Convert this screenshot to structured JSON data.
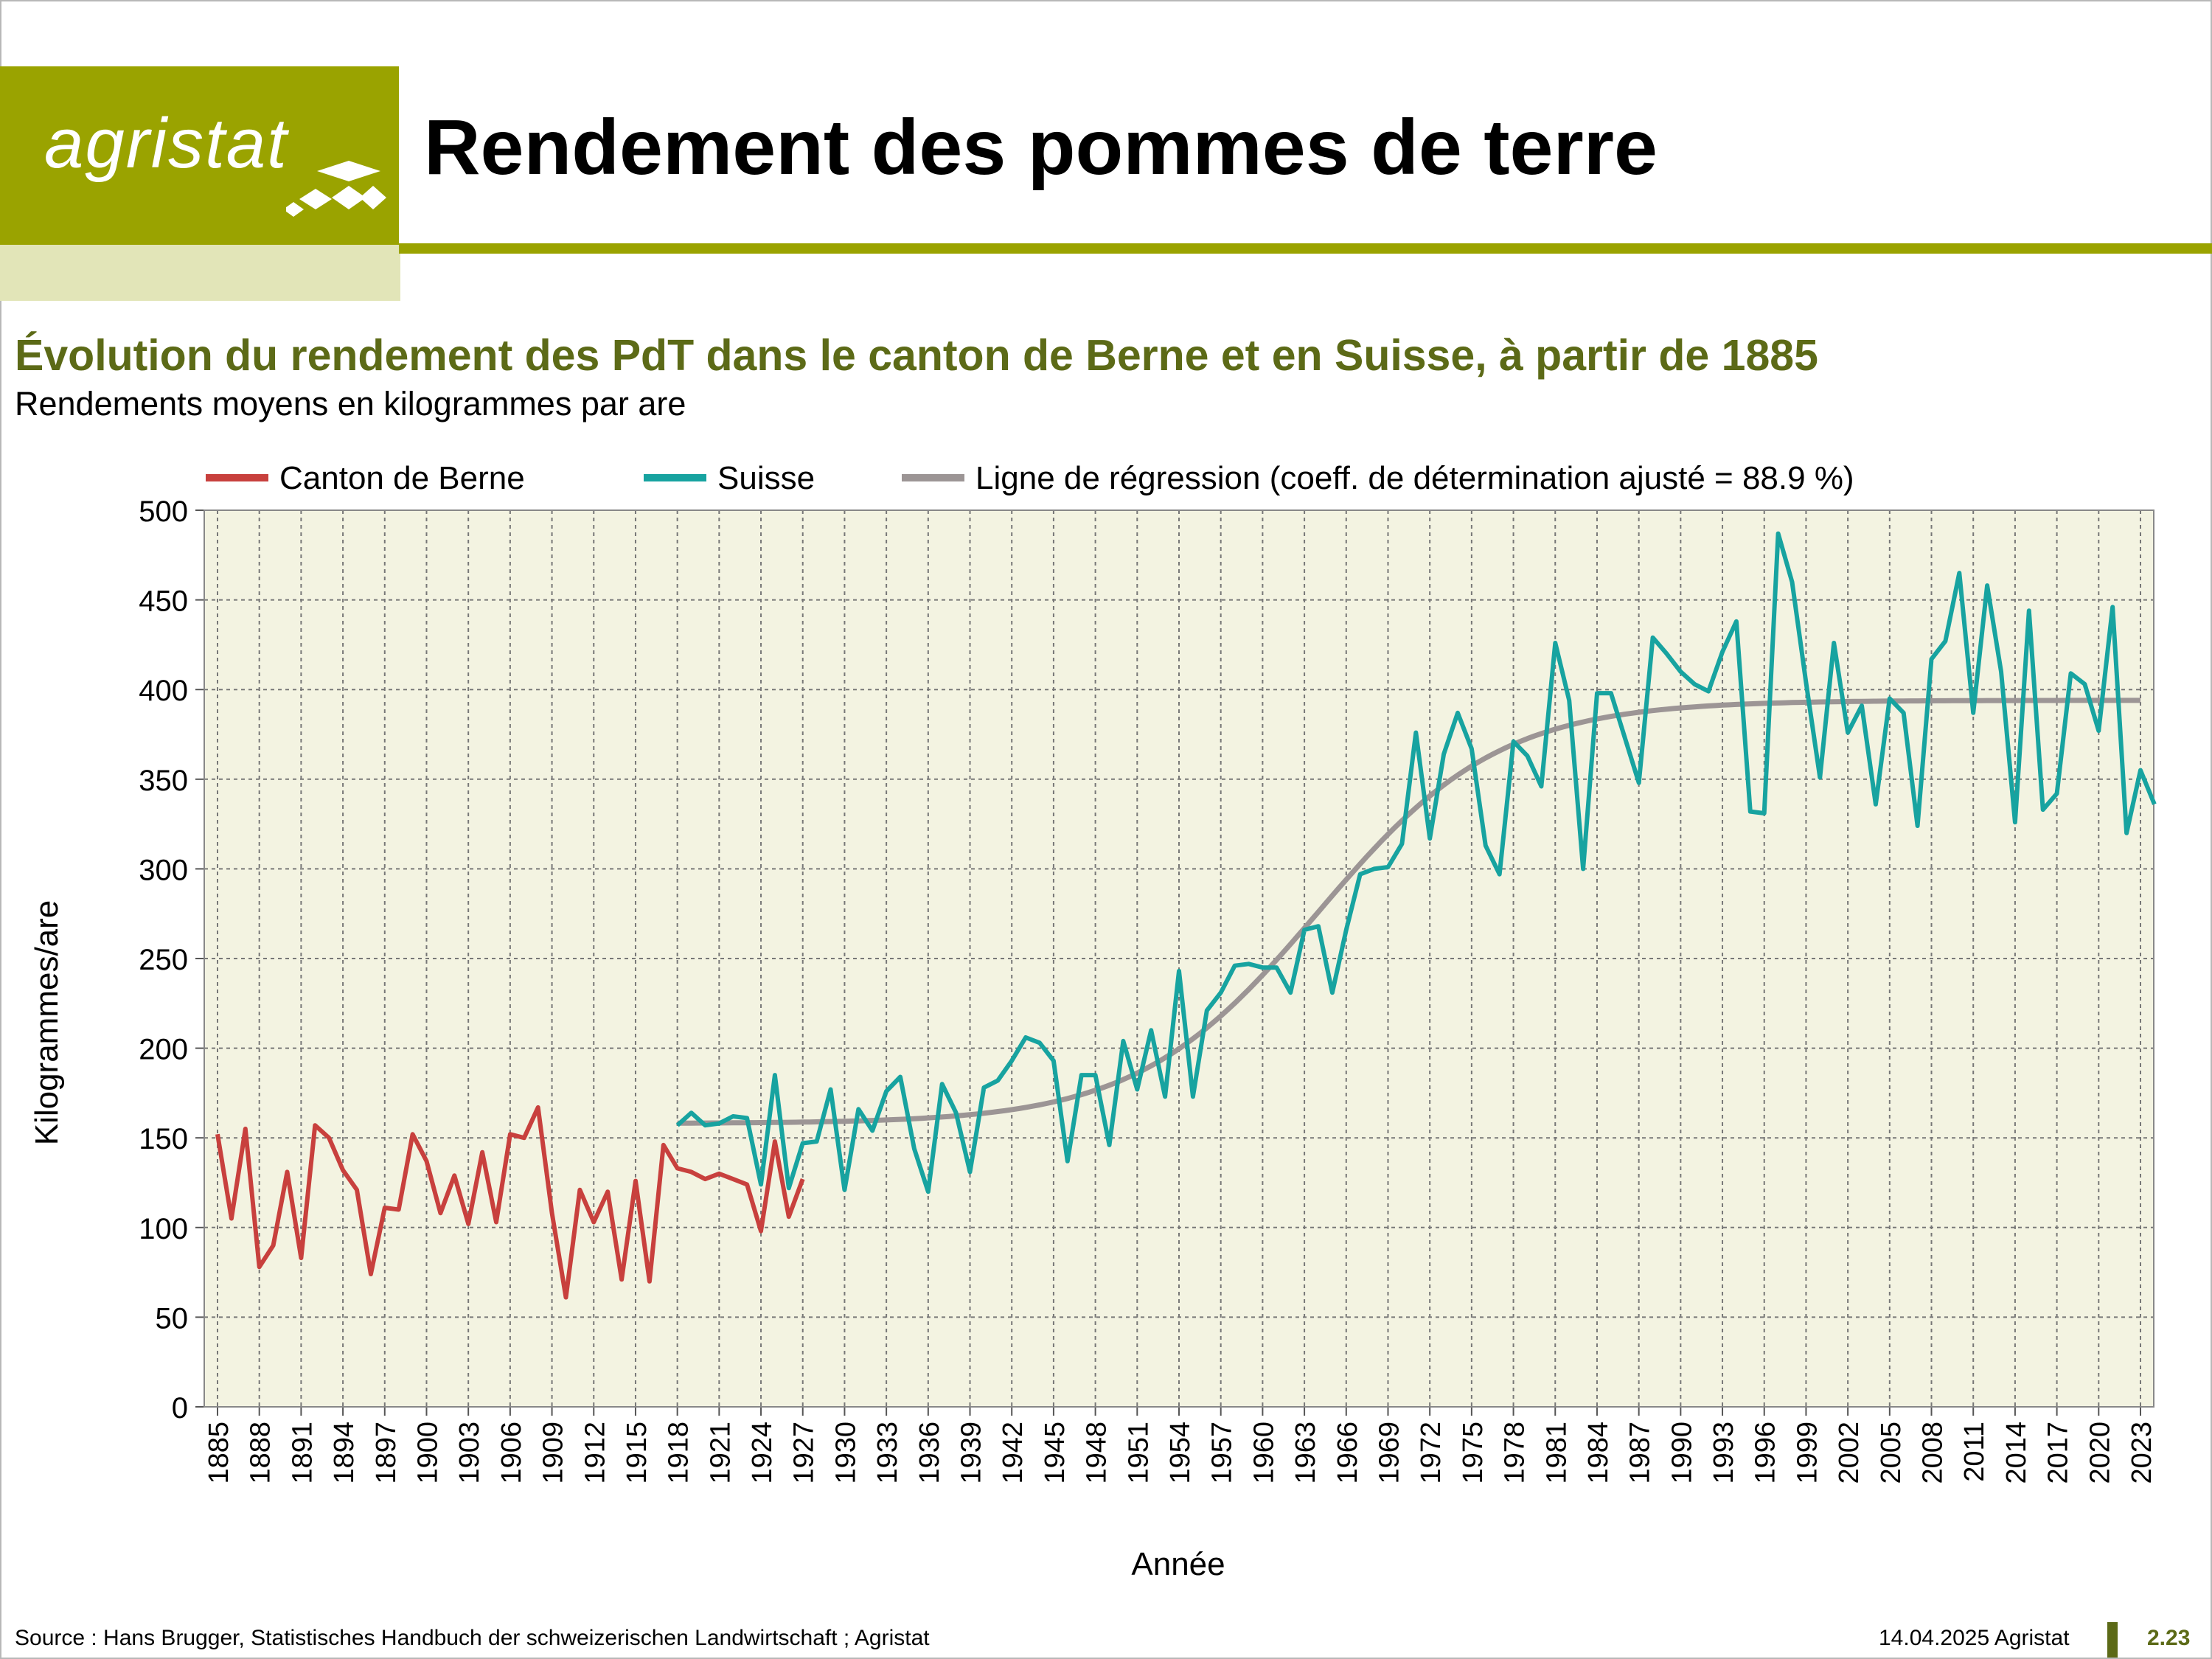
{
  "header": {
    "logo_text": "agristat",
    "title": "Rendement des pommes de terre"
  },
  "subtitle": "Évolution du rendement des PdT dans le canton de Berne et en Suisse, à partir de 1885",
  "subsubtitle": "Rendements moyens en kilogrammes par are",
  "footer": {
    "source": "Source : Hans Brugger, Statistisches Handbuch der schweizerischen Landwirtschaft ; Agristat",
    "date": "14.04.2025 Agristat",
    "page": "2.23"
  },
  "colors": {
    "brand": "#9aa300",
    "title_green": "#5c6a17",
    "berne": "#c8403d",
    "suisse": "#17a3a0",
    "regression": "#9c9595",
    "plot_bg": "#f3f3e1"
  },
  "chart_data": {
    "type": "line",
    "xlabel": "Année",
    "ylabel": "Kilogrammes/are",
    "ylim": [
      0,
      500
    ],
    "yticks": [
      0,
      50,
      100,
      150,
      200,
      250,
      300,
      350,
      400,
      450,
      500
    ],
    "xlim": [
      1885,
      2023
    ],
    "xticks": [
      1885,
      1888,
      1891,
      1894,
      1897,
      1900,
      1903,
      1906,
      1909,
      1912,
      1915,
      1918,
      1921,
      1924,
      1927,
      1930,
      1933,
      1936,
      1939,
      1942,
      1945,
      1948,
      1951,
      1954,
      1957,
      1960,
      1963,
      1966,
      1969,
      1972,
      1975,
      1978,
      1981,
      1984,
      1987,
      1990,
      1993,
      1996,
      1999,
      2002,
      2005,
      2008,
      2011,
      2014,
      2017,
      2020,
      2023
    ],
    "grid": true,
    "legend_position": "top",
    "series": [
      {
        "name": "Canton de Berne",
        "color": "#c8403d",
        "start_year": 1885,
        "values": [
          152,
          105,
          155,
          78,
          90,
          131,
          83,
          157,
          150,
          132,
          121,
          74,
          111,
          110,
          152,
          137,
          108,
          129,
          102,
          142,
          103,
          152,
          150,
          167,
          108,
          61,
          121,
          103,
          120,
          71,
          126,
          70,
          146,
          133,
          131,
          127,
          130,
          127,
          124,
          98,
          148,
          106,
          127
        ]
      },
      {
        "name": "Suisse",
        "color": "#17a3a0",
        "start_year": 1918,
        "values": [
          157,
          164,
          157,
          158,
          162,
          161,
          124,
          185,
          122,
          147,
          148,
          177,
          121,
          166,
          154,
          176,
          184,
          144,
          120,
          180,
          164,
          131,
          178,
          182,
          193,
          206,
          203,
          193,
          137,
          185,
          185,
          146,
          204,
          177,
          210,
          173,
          243,
          173,
          221,
          231,
          246,
          247,
          245,
          245,
          231,
          266,
          268,
          231,
          266,
          297,
          300,
          301,
          314,
          376,
          317,
          364,
          387,
          367,
          313,
          297,
          371,
          363,
          346,
          426,
          394,
          300,
          398,
          398,
          373,
          348,
          429,
          420,
          410,
          403,
          399,
          421,
          438,
          332,
          331,
          487,
          460,
          404,
          351,
          426,
          376,
          391,
          336,
          395,
          387,
          324,
          417,
          427,
          465,
          387,
          458,
          410,
          326,
          444,
          333,
          342,
          409,
          403,
          377,
          446,
          320,
          355,
          336
        ]
      },
      {
        "name": "Ligne de régression (coeff. de détermination ajusté = 88.9 %)",
        "color": "#9c9595",
        "start_year": 1918,
        "model": "logistic",
        "lower": 158,
        "upper": 394,
        "midpoint": 1964,
        "scale": 6.5
      }
    ]
  }
}
